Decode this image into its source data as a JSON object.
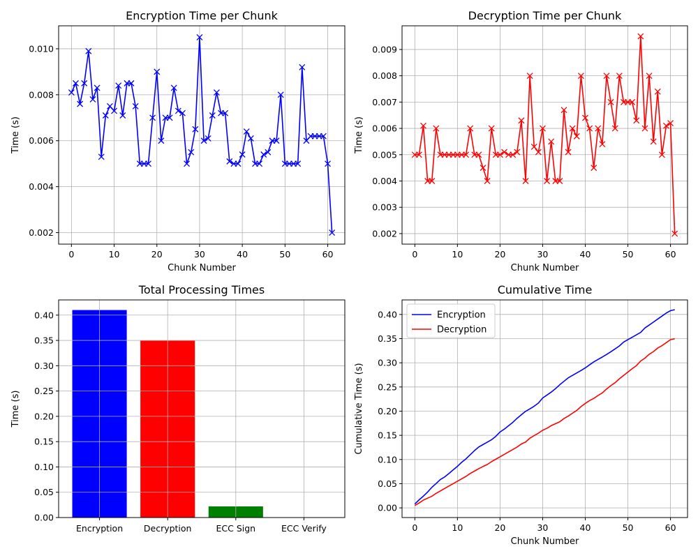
{
  "colors": {
    "encryption": "#0000ff",
    "decryption": "#ff0000",
    "ecc_sign": "#008000",
    "ecc_verify": "#808080",
    "grid": "#b0b0b0",
    "axis": "#000000"
  },
  "chart_data": [
    {
      "id": "enc",
      "type": "line",
      "title": "Encryption Time per Chunk",
      "xlabel": "Chunk Number",
      "ylabel": "Time (s)",
      "xlim": [
        -3,
        64
      ],
      "ylim": [
        0.0015,
        0.011
      ],
      "xticks": [
        0,
        10,
        20,
        30,
        40,
        50,
        60
      ],
      "yticks": [
        0.002,
        0.004,
        0.006,
        0.008,
        0.01
      ],
      "ytick_labels": [
        "0.002",
        "0.004",
        "0.006",
        "0.008",
        "0.010"
      ],
      "grid": true,
      "marker": "x",
      "series": [
        {
          "color": "#0000ff",
          "x": [
            0,
            1,
            2,
            3,
            4,
            5,
            6,
            7,
            8,
            9,
            10,
            11,
            12,
            13,
            14,
            15,
            16,
            17,
            18,
            19,
            20,
            21,
            22,
            23,
            24,
            25,
            26,
            27,
            28,
            29,
            30,
            31,
            32,
            33,
            34,
            35,
            36,
            37,
            38,
            39,
            40,
            41,
            42,
            43,
            44,
            45,
            46,
            47,
            48,
            49,
            50,
            51,
            52,
            53,
            54,
            55,
            56,
            57,
            58,
            59,
            60,
            61
          ],
          "y": [
            0.0081,
            0.0085,
            0.0076,
            0.0085,
            0.0099,
            0.0078,
            0.0083,
            0.0053,
            0.0071,
            0.0075,
            0.0073,
            0.0084,
            0.0071,
            0.0085,
            0.0085,
            0.0075,
            0.005,
            0.005,
            0.005,
            0.007,
            0.009,
            0.006,
            0.007,
            0.007,
            0.0083,
            0.0073,
            0.0072,
            0.005,
            0.0055,
            0.0065,
            0.0105,
            0.006,
            0.0061,
            0.0071,
            0.0081,
            0.0072,
            0.0072,
            0.0051,
            0.005,
            0.005,
            0.0054,
            0.0064,
            0.0061,
            0.005,
            0.005,
            0.0054,
            0.0055,
            0.006,
            0.006,
            0.008,
            0.005,
            0.005,
            0.005,
            0.005,
            0.0092,
            0.006,
            0.0062,
            0.0062,
            0.0062,
            0.0062,
            0.005,
            0.002
          ]
        }
      ]
    },
    {
      "id": "dec",
      "type": "line",
      "title": "Decryption Time per Chunk",
      "xlabel": "Chunk Number",
      "ylabel": "Time (s)",
      "xlim": [
        -3,
        64
      ],
      "ylim": [
        0.0016,
        0.0099
      ],
      "xticks": [
        0,
        10,
        20,
        30,
        40,
        50,
        60
      ],
      "yticks": [
        0.002,
        0.003,
        0.004,
        0.005,
        0.006,
        0.007,
        0.008,
        0.009
      ],
      "ytick_labels": [
        "0.002",
        "0.003",
        "0.004",
        "0.005",
        "0.006",
        "0.007",
        "0.008",
        "0.009"
      ],
      "grid": true,
      "marker": "x",
      "series": [
        {
          "color": "#ff0000",
          "x": [
            0,
            1,
            2,
            3,
            4,
            5,
            6,
            7,
            8,
            9,
            10,
            11,
            12,
            13,
            14,
            15,
            16,
            17,
            18,
            19,
            20,
            21,
            22,
            23,
            24,
            25,
            26,
            27,
            28,
            29,
            30,
            31,
            32,
            33,
            34,
            35,
            36,
            37,
            38,
            39,
            40,
            41,
            42,
            43,
            44,
            45,
            46,
            47,
            48,
            49,
            50,
            51,
            52,
            53,
            54,
            55,
            56,
            57,
            58,
            59,
            60,
            61
          ],
          "y": [
            0.005,
            0.005,
            0.0061,
            0.004,
            0.004,
            0.006,
            0.005,
            0.005,
            0.005,
            0.005,
            0.005,
            0.005,
            0.005,
            0.006,
            0.005,
            0.005,
            0.0045,
            0.004,
            0.006,
            0.005,
            0.005,
            0.0051,
            0.005,
            0.005,
            0.0051,
            0.0063,
            0.004,
            0.008,
            0.0053,
            0.0051,
            0.006,
            0.004,
            0.0055,
            0.004,
            0.004,
            0.0067,
            0.0051,
            0.006,
            0.0057,
            0.008,
            0.0064,
            0.006,
            0.0045,
            0.006,
            0.0054,
            0.008,
            0.007,
            0.006,
            0.008,
            0.007,
            0.007,
            0.007,
            0.0063,
            0.0095,
            0.006,
            0.008,
            0.0055,
            0.0074,
            0.005,
            0.0061,
            0.0062,
            0.002
          ]
        }
      ]
    },
    {
      "id": "bars",
      "type": "bar",
      "title": "Total Processing Times",
      "xlabel": "",
      "ylabel": "Time (s)",
      "ylim": [
        0,
        0.43
      ],
      "yticks": [
        0,
        0.05,
        0.1,
        0.15,
        0.2,
        0.25,
        0.3,
        0.35,
        0.4
      ],
      "ytick_labels": [
        "0.00",
        "0.05",
        "0.10",
        "0.15",
        "0.20",
        "0.25",
        "0.30",
        "0.35",
        "0.40"
      ],
      "grid": true,
      "categories": [
        "Encryption",
        "Decryption",
        "ECC Sign",
        "ECC Verify"
      ],
      "values": [
        0.41,
        0.35,
        0.022,
        0.0005
      ],
      "bar_colors": [
        "#0000ff",
        "#ff0000",
        "#008000",
        "#808080"
      ]
    },
    {
      "id": "cum",
      "type": "line",
      "title": "Cumulative Time",
      "xlabel": "Chunk Number",
      "ylabel": "Cumulative Time (s)",
      "xlim": [
        -3,
        64
      ],
      "ylim": [
        -0.02,
        0.43
      ],
      "xticks": [
        0,
        10,
        20,
        30,
        40,
        50,
        60
      ],
      "yticks": [
        0,
        0.05,
        0.1,
        0.15,
        0.2,
        0.25,
        0.3,
        0.35,
        0.4
      ],
      "ytick_labels": [
        "0.00",
        "0.05",
        "0.10",
        "0.15",
        "0.20",
        "0.25",
        "0.30",
        "0.35",
        "0.40"
      ],
      "grid": true,
      "legend": "upper-left",
      "cumulative_of": [
        "enc",
        "dec"
      ],
      "series": [
        {
          "name": "Encryption",
          "color": "#0000ff",
          "source": "enc"
        },
        {
          "name": "Decryption",
          "color": "#ff0000",
          "source": "dec"
        }
      ]
    }
  ]
}
